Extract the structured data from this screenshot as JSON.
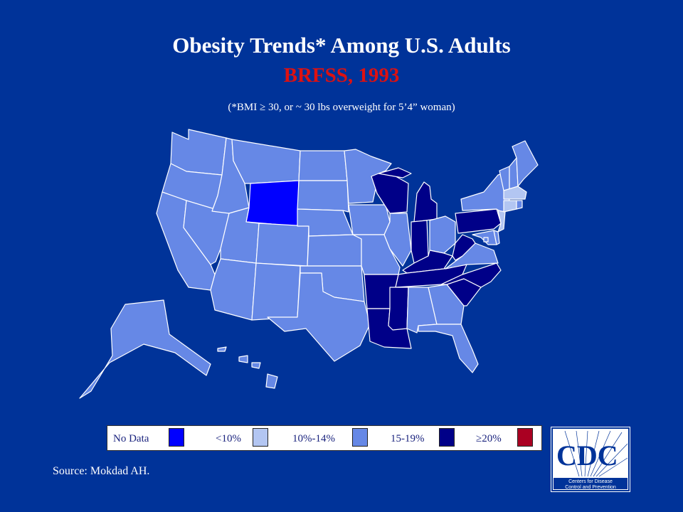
{
  "title": "Obesity Trends* Among U.S. Adults",
  "subtitle": "BRFSS, 1993",
  "note": "(*BMI ≥ 30, or ~ 30 lbs overweight for 5’4” woman)",
  "source": "Source: Mokdad AH.",
  "colors": {
    "background": "#003399",
    "no_data": "#0000ff",
    "lt10": "#b3c6f2",
    "r10_14": "#6688e6",
    "r15_19": "#000088",
    "ge20": "#aa0022",
    "state_border": "#ffffff"
  },
  "legend": [
    {
      "label": "No Data",
      "color": "#0000ff"
    },
    {
      "label": "<10%",
      "color": "#b3c6f2"
    },
    {
      "label": "10%-14%",
      "color": "#6688e6"
    },
    {
      "label": "15-19%",
      "color": "#000088"
    },
    {
      "label": "≥20%",
      "color": "#aa0022"
    }
  ],
  "logo": {
    "text": "CDC",
    "line1": "Centers for Disease",
    "line2": "Control and Prevention"
  },
  "states": {
    "WA": "10-14",
    "OR": "10-14",
    "CA": "10-14",
    "NV": "10-14",
    "ID": "10-14",
    "MT": "10-14",
    "WY": "no_data",
    "UT": "10-14",
    "AZ": "10-14",
    "CO": "10-14",
    "NM": "10-14",
    "ND": "10-14",
    "SD": "10-14",
    "NE": "10-14",
    "KS": "10-14",
    "OK": "10-14",
    "TX": "10-14",
    "MN": "10-14",
    "IA": "10-14",
    "MO": "10-14",
    "AR": "15-19",
    "LA": "15-19",
    "WI": "15-19",
    "IL": "10-14",
    "MI": "15-19",
    "IN": "15-19",
    "OH": "10-14",
    "KY": "15-19",
    "TN": "15-19",
    "MS": "15-19",
    "AL": "10-14",
    "GA": "10-14",
    "FL": "10-14",
    "SC": "15-19",
    "NC": "15-19",
    "VA": "10-14",
    "WV": "15-19",
    "PA": "15-19",
    "NY": "10-14",
    "NJ": "lt10",
    "CT": "lt10",
    "MA": "lt10",
    "RI": "10-14",
    "VT": "10-14",
    "NH": "10-14",
    "ME": "10-14",
    "MD": "10-14",
    "DE": "10-14",
    "DC": "10-14",
    "AK": "10-14",
    "HI": "10-14"
  }
}
